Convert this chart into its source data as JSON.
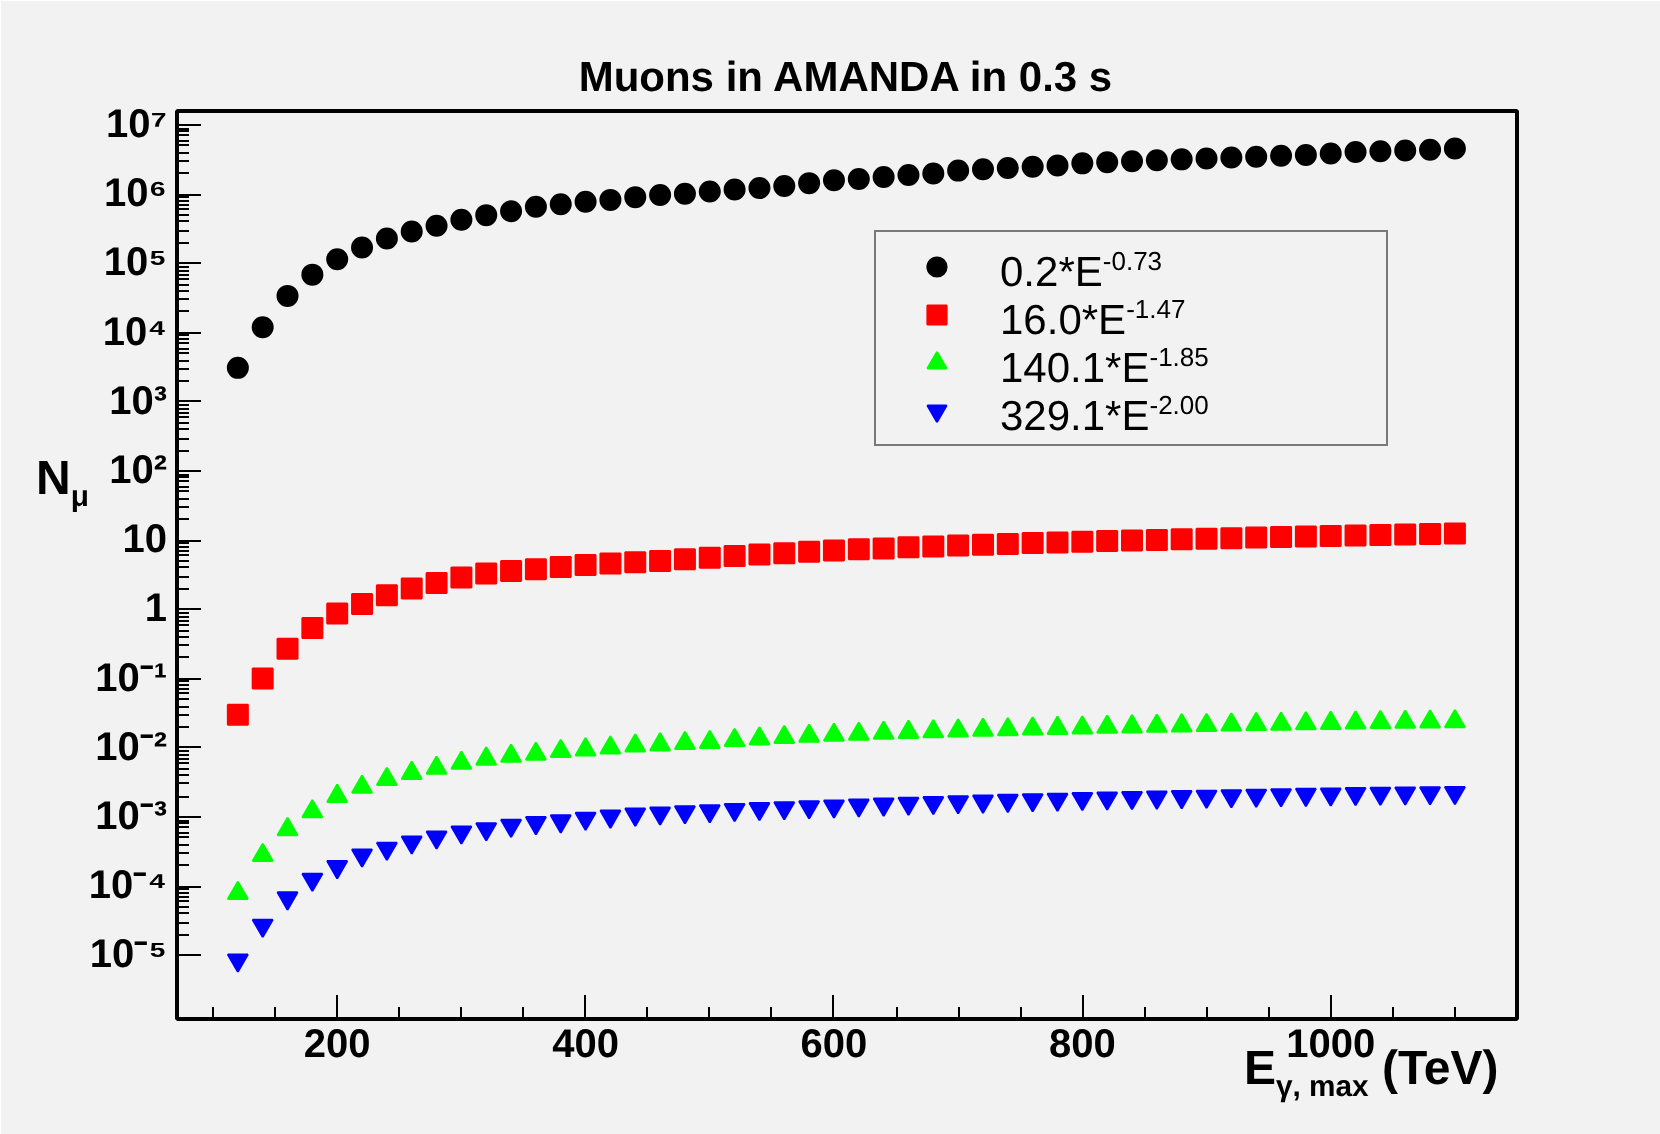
{
  "chart_data": {
    "type": "scatter",
    "title": "Muons in AMANDA in 0.3 s",
    "xlabel": "E$_{γ, max}$ (TeV)",
    "ylabel": "N$_{μ}$",
    "x": [
      120,
      140,
      160,
      180,
      200,
      220,
      240,
      260,
      280,
      300,
      320,
      340,
      360,
      380,
      400,
      420,
      440,
      460,
      480,
      500,
      520,
      540,
      560,
      580,
      600,
      620,
      640,
      660,
      680,
      700,
      720,
      740,
      760,
      780,
      800,
      820,
      840,
      860,
      880,
      900,
      920,
      940,
      960,
      980,
      1000,
      1020,
      1040,
      1060,
      1080,
      1100
    ],
    "series": [
      {
        "name": "0.2*E$^{-0.73}$",
        "color": "#000000",
        "marker": "circle",
        "values": [
          3100,
          12000,
          34000,
          69000,
          115000,
          170000,
          230000,
          290000,
          350000,
          430000,
          500000,
          570000,
          660000,
          720000,
          780000,
          830000,
          910000,
          980000,
          1020000,
          1100000,
          1170000,
          1230000,
          1320000,
          1450000,
          1600000,
          1660000,
          1780000,
          1900000,
          2000000,
          2200000,
          2300000,
          2400000,
          2500000,
          2600000,
          2800000,
          2900000,
          3000000,
          3100000,
          3200000,
          3300000,
          3400000,
          3500000,
          3600000,
          3700000,
          3900000,
          4100000,
          4200000,
          4300000,
          4400000,
          4600000
        ]
      },
      {
        "name": "16.0*E$^{-1.47}$",
        "color": "#ff0000",
        "marker": "square",
        "values": [
          0.03,
          0.1,
          0.27,
          0.54,
          0.87,
          1.2,
          1.6,
          2.0,
          2.4,
          2.9,
          3.3,
          3.6,
          3.8,
          4.1,
          4.4,
          4.6,
          4.8,
          5.0,
          5.3,
          5.6,
          5.9,
          6.2,
          6.5,
          6.8,
          7.1,
          7.4,
          7.6,
          7.9,
          8.1,
          8.4,
          8.6,
          8.8,
          9.1,
          9.3,
          9.5,
          9.7,
          9.9,
          10.1,
          10.3,
          10.5,
          10.7,
          10.9,
          11.1,
          11.3,
          11.5,
          11.7,
          11.9,
          12.1,
          12.3,
          12.5
        ]
      },
      {
        "name": "140.1*E$^{-1.85}$",
        "color": "#00ff00",
        "marker": "triangle",
        "values": [
          7.9e-05,
          0.00028,
          0.00066,
          0.0012,
          0.002,
          0.0027,
          0.0035,
          0.0043,
          0.0051,
          0.006,
          0.0069,
          0.0076,
          0.0081,
          0.0089,
          0.0094,
          0.01,
          0.0107,
          0.0111,
          0.0116,
          0.012,
          0.0128,
          0.0135,
          0.0142,
          0.0148,
          0.0153,
          0.0158,
          0.0163,
          0.0168,
          0.0172,
          0.0176,
          0.018,
          0.0184,
          0.0188,
          0.0192,
          0.0195,
          0.0199,
          0.0202,
          0.0206,
          0.0209,
          0.0212,
          0.0215,
          0.0218,
          0.0221,
          0.0224,
          0.0227,
          0.023,
          0.0233,
          0.0235,
          0.0238,
          0.024
        ]
      },
      {
        "name": "329.1*E$^{-2.00}$",
        "color": "#0000ff",
        "marker": "triangle_down",
        "values": [
          8.5e-06,
          2.7e-05,
          6.7e-05,
          0.000125,
          0.00019,
          0.00028,
          0.00035,
          0.00043,
          0.00051,
          0.0006,
          0.00067,
          0.00075,
          0.00082,
          0.00087,
          0.00095,
          0.00102,
          0.00109,
          0.00113,
          0.00118,
          0.00122,
          0.00127,
          0.00131,
          0.00135,
          0.00139,
          0.00143,
          0.00148,
          0.00152,
          0.00156,
          0.0016,
          0.00164,
          0.00168,
          0.00172,
          0.00176,
          0.00179,
          0.00183,
          0.00186,
          0.00189,
          0.00192,
          0.00195,
          0.00198,
          0.00201,
          0.00204,
          0.00207,
          0.0021,
          0.00213,
          0.00216,
          0.00218,
          0.0022,
          0.00222,
          0.00224
        ]
      }
    ],
    "xlim": [
      71,
      1150
    ],
    "ylim": [
      1.2e-06,
      16000000.0
    ],
    "log": "y",
    "xticks": [
      {
        "value": 100,
        "label": null
      },
      {
        "value": 150,
        "label": null
      },
      200,
      {
        "value": 250,
        "label": null
      },
      {
        "value": 300,
        "label": null
      },
      {
        "value": 350,
        "label": null
      },
      400,
      {
        "value": 450,
        "label": null
      },
      {
        "value": 500,
        "label": null
      },
      {
        "value": 550,
        "label": null
      },
      600,
      {
        "value": 650,
        "label": null
      },
      {
        "value": 700,
        "label": null
      },
      {
        "value": 750,
        "label": null
      },
      800,
      {
        "value": 850,
        "label": null
      },
      {
        "value": 900,
        "label": null
      },
      {
        "value": 950,
        "label": null
      },
      1000,
      {
        "value": 1050,
        "label": null
      },
      {
        "value": 1100,
        "label": null
      }
    ],
    "yticks": [
      {
        "value": 1e-05,
        "label": "10⁻⁵"
      },
      {
        "value": 0.0001,
        "label": "10⁻⁴"
      },
      {
        "value": 0.001,
        "label": "10⁻³"
      },
      {
        "value": 0.01,
        "label": "10⁻²"
      },
      {
        "value": 0.1,
        "label": "10⁻¹"
      },
      1,
      10,
      {
        "value": 100,
        "label": "10²"
      },
      {
        "value": 1000,
        "label": "10³"
      },
      {
        "value": 10000,
        "label": "10⁴"
      },
      {
        "value": 100000,
        "label": "10⁵"
      },
      {
        "value": 1000000,
        "label": "10⁶"
      },
      {
        "value": 10000000,
        "label": "10⁷"
      }
    ],
    "grid": false,
    "legend": "top right"
  }
}
